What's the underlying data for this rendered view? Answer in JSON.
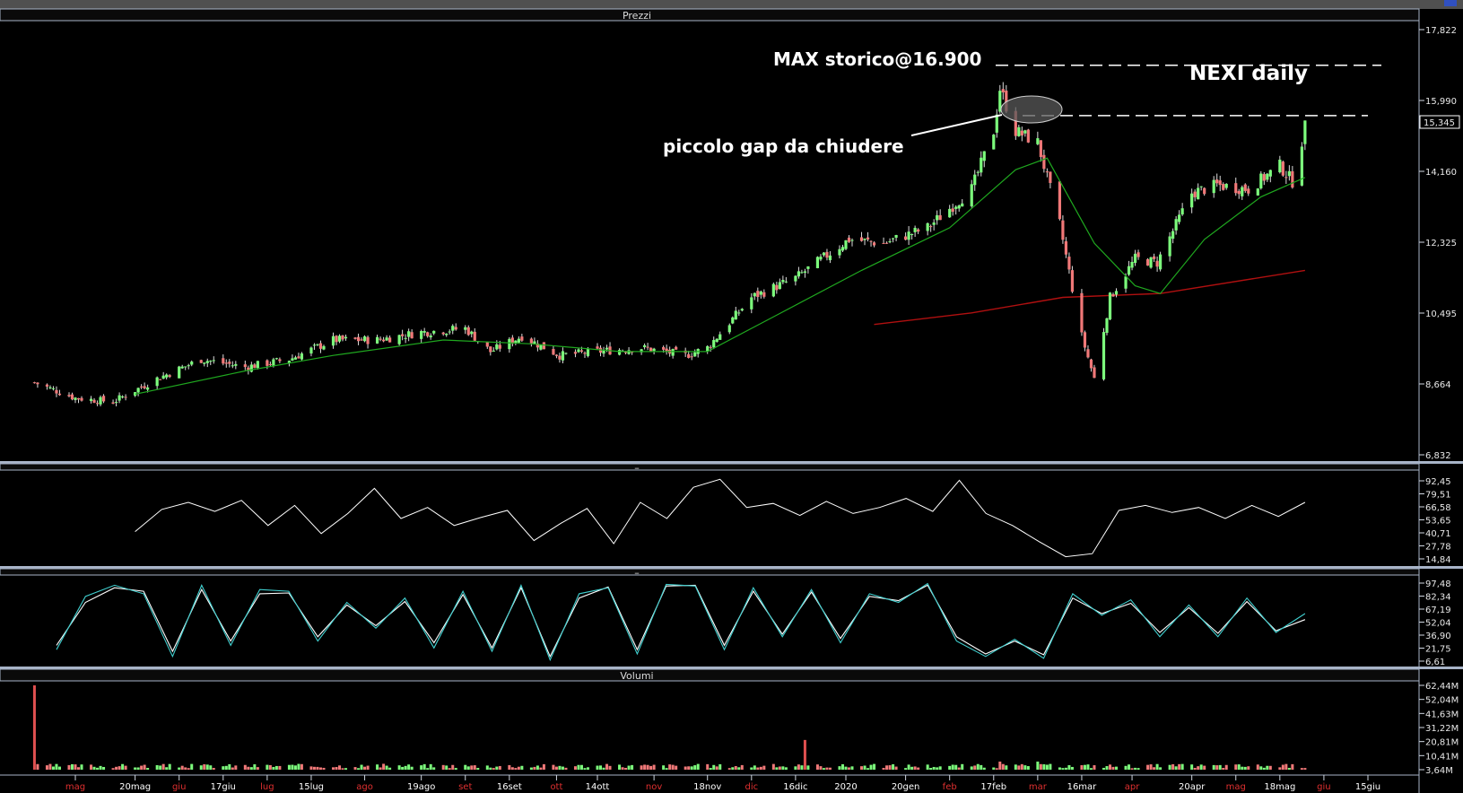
{
  "window": {
    "price_panel_title": "Prezzi",
    "rsi_panel_title": "–",
    "stoch_panel_title": "–",
    "volume_panel_title": "Volumi",
    "last_price_label": "15,345"
  },
  "annotations": {
    "chart_title": "NEXI daily",
    "max_label": "MAX storico@16.900",
    "gap_label": "piccolo gap da chiudere"
  },
  "colors": {
    "up_candle": "#7CFC7C",
    "down_candle": "#F07878",
    "ma_short": "#1FA81F",
    "ma_long": "#B01010",
    "rsi_line": "#FFFFFF",
    "stoch_k": "#40D0D0",
    "stoch_d": "#FFFFFF",
    "panel_divider": "#A8B4C8",
    "volume_spike": "#E05050"
  },
  "chart_data": [
    {
      "type": "candlestick",
      "panel": "price",
      "title": "NEXI daily",
      "y_ticks": [
        "17,822",
        "15,990",
        "14,160",
        "12,325",
        "10,495",
        "8,664",
        "6,832"
      ],
      "ylim": [
        6.832,
        17.822
      ],
      "close_path": [
        [
          "2019-04-18",
          8.7
        ],
        [
          "2019-05-01",
          8.3
        ],
        [
          "2019-05-13",
          8.2
        ],
        [
          "2019-05-27",
          8.8
        ],
        [
          "2019-06-10",
          9.3
        ],
        [
          "2019-06-24",
          9.1
        ],
        [
          "2019-07-08",
          9.3
        ],
        [
          "2019-07-22",
          9.8
        ],
        [
          "2019-08-05",
          9.8
        ],
        [
          "2019-08-19",
          10.0
        ],
        [
          "2019-09-02",
          10.1
        ],
        [
          "2019-09-10",
          9.5
        ],
        [
          "2019-09-20",
          9.9
        ],
        [
          "2019-10-02",
          9.4
        ],
        [
          "2019-10-14",
          9.5
        ],
        [
          "2019-10-28",
          9.6
        ],
        [
          "2019-11-11",
          9.4
        ],
        [
          "2019-11-18",
          9.6
        ],
        [
          "2019-12-02",
          10.9
        ],
        [
          "2019-12-16",
          11.4
        ],
        [
          "2020-01-02",
          12.4
        ],
        [
          "2020-01-13",
          12.3
        ],
        [
          "2020-01-27",
          12.7
        ],
        [
          "2020-02-10",
          13.7
        ],
        [
          "2020-02-17",
          15.2
        ],
        [
          "2020-02-19",
          16.3
        ],
        [
          "2020-02-24",
          15.2
        ],
        [
          "2020-03-02",
          14.9
        ],
        [
          "2020-03-09",
          12.8
        ],
        [
          "2020-03-16",
          9.9
        ],
        [
          "2020-03-20",
          8.8
        ],
        [
          "2020-03-25",
          10.9
        ],
        [
          "2020-04-02",
          11.9
        ],
        [
          "2020-04-09",
          11.8
        ],
        [
          "2020-04-20",
          13.6
        ],
        [
          "2020-04-28",
          13.8
        ],
        [
          "2020-05-08",
          13.7
        ],
        [
          "2020-05-18",
          14.3
        ],
        [
          "2020-05-22",
          13.9
        ],
        [
          "2020-05-26",
          15.3
        ]
      ],
      "ma_short_path": [
        [
          "2019-05-20",
          8.4
        ],
        [
          "2019-06-24",
          9.0
        ],
        [
          "2019-07-22",
          9.4
        ],
        [
          "2019-08-26",
          9.8
        ],
        [
          "2019-09-23",
          9.7
        ],
        [
          "2019-10-21",
          9.5
        ],
        [
          "2019-11-18",
          9.5
        ],
        [
          "2019-12-09",
          10.4
        ],
        [
          "2020-01-06",
          11.6
        ],
        [
          "2020-02-03",
          12.7
        ],
        [
          "2020-02-24",
          14.2
        ],
        [
          "2020-03-05",
          14.5
        ],
        [
          "2020-03-20",
          12.3
        ],
        [
          "2020-04-02",
          11.2
        ],
        [
          "2020-04-10",
          11.0
        ],
        [
          "2020-04-24",
          12.4
        ],
        [
          "2020-05-12",
          13.5
        ],
        [
          "2020-05-26",
          14.0
        ]
      ],
      "ma_long_path": [
        [
          "2020-01-10",
          10.2
        ],
        [
          "2020-02-10",
          10.5
        ],
        [
          "2020-03-10",
          10.9
        ],
        [
          "2020-04-10",
          11.0
        ],
        [
          "2020-05-26",
          11.6
        ]
      ],
      "reference_lines": [
        {
          "name": "max-storico",
          "value": 16.9,
          "style": "dashed"
        },
        {
          "name": "gap",
          "value": 15.6,
          "style": "dashed"
        }
      ]
    },
    {
      "type": "line",
      "panel": "rsi",
      "y_ticks": [
        "92,45",
        "79,51",
        "66,58",
        "53,65",
        "40,71",
        "27,78",
        "14,84"
      ],
      "ylim": [
        14.84,
        92.45
      ],
      "series": [
        {
          "values": [
            42,
            64,
            71,
            62,
            73,
            48,
            68,
            40,
            60,
            85,
            55,
            66,
            48,
            56,
            63,
            33,
            50,
            65,
            30,
            71,
            55,
            86,
            94,
            66,
            70,
            58,
            72,
            60,
            66,
            75,
            62,
            93,
            60,
            48,
            32,
            17,
            20,
            63,
            68,
            61,
            66,
            55,
            68,
            57,
            71
          ]
        }
      ]
    },
    {
      "type": "line",
      "panel": "stochastic",
      "y_ticks": [
        "97,48",
        "82,34",
        "67,19",
        "52,04",
        "36,90",
        "21,75",
        "6,61"
      ],
      "ylim": [
        6.61,
        97.48
      ],
      "series": [
        {
          "values": [
            20,
            82,
            95,
            85,
            12,
            95,
            25,
            90,
            88,
            30,
            75,
            45,
            80,
            22,
            88,
            18,
            95,
            8,
            85,
            92,
            15,
            96,
            94,
            20,
            92,
            35,
            90,
            28,
            85,
            75,
            97,
            30,
            12,
            32,
            10,
            85,
            60,
            78,
            35,
            72,
            35,
            80,
            40,
            62
          ]
        },
        {
          "values": [
            25,
            75,
            92,
            88,
            18,
            90,
            30,
            85,
            86,
            35,
            72,
            48,
            76,
            28,
            84,
            22,
            92,
            12,
            80,
            93,
            20,
            94,
            95,
            25,
            88,
            38,
            87,
            33,
            82,
            77,
            95,
            35,
            15,
            30,
            14,
            80,
            62,
            74,
            40,
            69,
            39,
            76,
            42,
            55
          ]
        }
      ]
    },
    {
      "type": "bar",
      "panel": "volume",
      "title": "Volumi",
      "y_ticks": [
        "62,44M",
        "52,04M",
        "41,63M",
        "31,22M",
        "20,81M",
        "10,41M",
        "3,64M"
      ],
      "ylim": [
        0,
        62.44
      ],
      "spikes": [
        {
          "date": "2019-04-18",
          "value": 62.44
        },
        {
          "date": "2019-12-19",
          "value": 22.0
        },
        {
          "date": "2020-02-19",
          "value": 6.0
        },
        {
          "date": "2020-03-02",
          "value": 6.0
        }
      ],
      "baseline_value": 3.64
    }
  ],
  "x_axis": {
    "labels": [
      {
        "text": "mag",
        "date": "2019-05-01",
        "month_start": true
      },
      {
        "text": "20mag",
        "date": "2019-05-20"
      },
      {
        "text": "giu",
        "date": "2019-06-03",
        "month_start": true
      },
      {
        "text": "17giu",
        "date": "2019-06-17"
      },
      {
        "text": "lug",
        "date": "2019-07-01",
        "month_start": true
      },
      {
        "text": "15lug",
        "date": "2019-07-15"
      },
      {
        "text": "ago",
        "date": "2019-08-01",
        "month_start": true
      },
      {
        "text": "19ago",
        "date": "2019-08-19"
      },
      {
        "text": "set",
        "date": "2019-09-02",
        "month_start": true
      },
      {
        "text": "16set",
        "date": "2019-09-16"
      },
      {
        "text": "ott",
        "date": "2019-10-01",
        "month_start": true
      },
      {
        "text": "14ott",
        "date": "2019-10-14"
      },
      {
        "text": "nov",
        "date": "2019-11-01",
        "month_start": true
      },
      {
        "text": "18nov",
        "date": "2019-11-18"
      },
      {
        "text": "dic",
        "date": "2019-12-02",
        "month_start": true
      },
      {
        "text": "16dic",
        "date": "2019-12-16"
      },
      {
        "text": "2020",
        "date": "2020-01-01",
        "year_start": true
      },
      {
        "text": "20gen",
        "date": "2020-01-20"
      },
      {
        "text": "feb",
        "date": "2020-02-03",
        "month_start": true
      },
      {
        "text": "17feb",
        "date": "2020-02-17"
      },
      {
        "text": "mar",
        "date": "2020-03-02",
        "month_start": true
      },
      {
        "text": "16mar",
        "date": "2020-03-16"
      },
      {
        "text": "apr",
        "date": "2020-04-01",
        "month_start": true
      },
      {
        "text": "20apr",
        "date": "2020-04-20"
      },
      {
        "text": "mag",
        "date": "2020-05-04",
        "month_start": true
      },
      {
        "text": "18mag",
        "date": "2020-05-18"
      },
      {
        "text": "giu",
        "date": "2020-06-01",
        "month_start": true
      },
      {
        "text": "15giu",
        "date": "2020-06-15"
      }
    ]
  }
}
